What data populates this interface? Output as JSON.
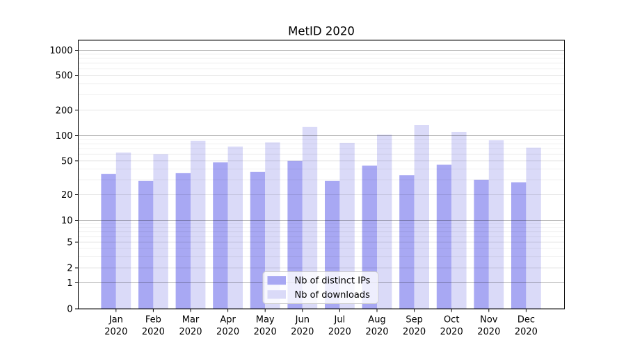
{
  "chart_data": {
    "type": "bar",
    "title": "MetID 2020",
    "categories": [
      "Jan",
      "Feb",
      "Mar",
      "Apr",
      "May",
      "Jun",
      "Jul",
      "Aug",
      "Sep",
      "Oct",
      "Nov",
      "Dec"
    ],
    "category_year": "2020",
    "series": [
      {
        "name": "Nb of distinct IPs",
        "color": "#a8a8f3",
        "values": [
          35,
          29,
          36,
          48,
          37,
          50,
          29,
          44,
          34,
          45,
          30,
          28
        ]
      },
      {
        "name": "Nb of downloads",
        "color": "#dadaf8",
        "values": [
          63,
          60,
          87,
          74,
          83,
          127,
          82,
          103,
          134,
          111,
          88,
          72
        ]
      }
    ],
    "yscale": "symlog",
    "yticks": [
      0,
      1,
      2,
      5,
      10,
      20,
      50,
      100,
      200,
      500,
      1000
    ],
    "ytick_labels": [
      "0",
      "1",
      "2",
      "5",
      "10",
      "20",
      "50",
      "100",
      "200",
      "500",
      "1000"
    ],
    "minor_grid_values": [
      3,
      4,
      6,
      7,
      8,
      9,
      30,
      40,
      60,
      70,
      80,
      90,
      300,
      400,
      600,
      700,
      800,
      900
    ],
    "labeled_minor_grid_values": [
      2,
      5,
      20,
      50,
      200,
      500
    ],
    "major_grid_values": [
      1,
      10,
      100,
      1000
    ],
    "ylim": [
      0,
      1300
    ],
    "grid": true,
    "legend": {
      "entries": [
        "Nb of distinct IPs",
        "Nb of downloads"
      ],
      "position": "lower-center-inside"
    },
    "colors": {
      "spine": "#000000",
      "major_grid": "rgba(0,0,0,0.32)",
      "labeled_minor_grid": "rgba(0,0,0,0.10)",
      "minor_grid": "rgba(0,0,0,0.055)",
      "legend_border": "#cccccc",
      "legend_bg": "rgba(255,255,255,0.8)",
      "text": "#000000"
    }
  }
}
